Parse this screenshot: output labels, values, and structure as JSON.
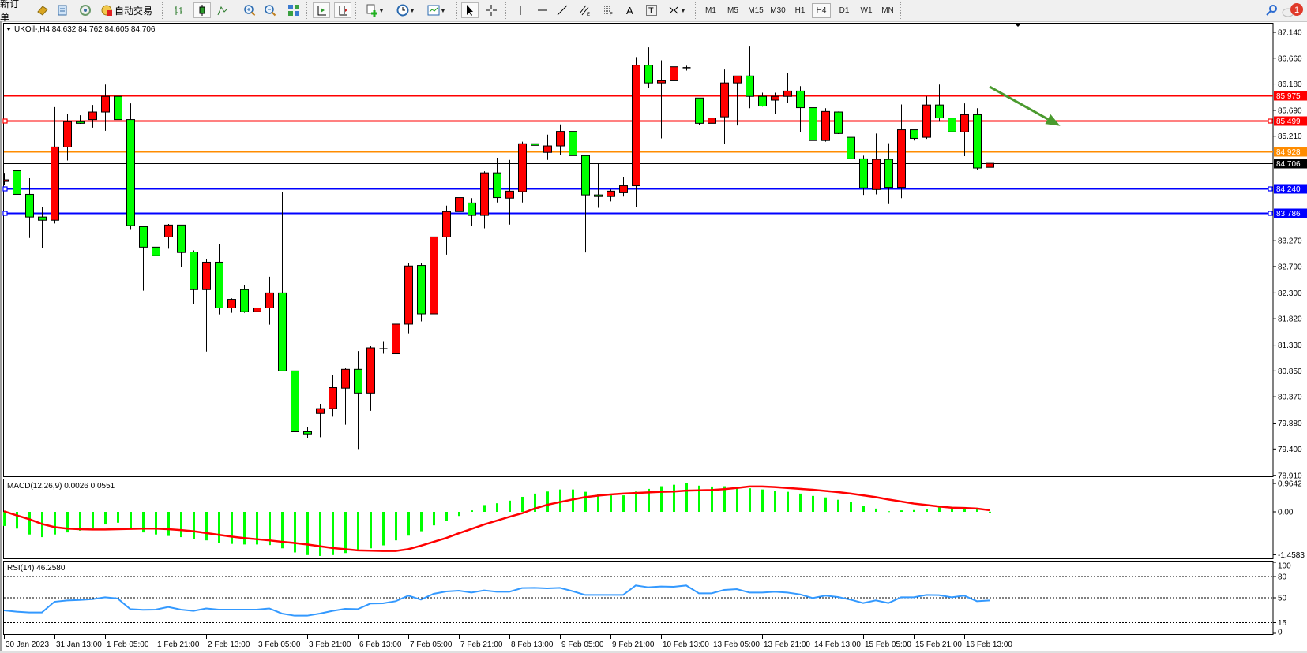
{
  "toolbar": {
    "new_order": "新订单",
    "auto_trading": "自动交易",
    "periods": [
      "M1",
      "M5",
      "M15",
      "M30",
      "H1",
      "H4",
      "D1",
      "W1",
      "MN"
    ],
    "active_period": "H4",
    "notification_count": "1"
  },
  "chart": {
    "symbol_info": "UKOil-,H4  84.632 84.762 84.605 84.706",
    "up_color": "#ff0000",
    "down_color": "#00ff00",
    "price_ticks": [
      "87.140",
      "86.660",
      "86.180",
      "85.690",
      "85.210",
      "83.270",
      "82.790",
      "82.300",
      "81.820",
      "81.330",
      "80.850",
      "80.370",
      "79.880",
      "79.400",
      "78.910"
    ],
    "horizontal_lines": [
      {
        "price": 85.975,
        "label": "85.975",
        "color": "#ff0000",
        "marker": false
      },
      {
        "price": 85.499,
        "label": "85.499",
        "color": "#ff0000",
        "marker": true
      },
      {
        "price": 84.928,
        "label": "84.928",
        "color": "#ff8c00",
        "marker": false
      },
      {
        "price": 84.706,
        "label": "84.706",
        "color": "#000000",
        "marker": false
      },
      {
        "price": 84.24,
        "label": "84.240",
        "color": "#0000ff",
        "marker": true
      },
      {
        "price": 83.786,
        "label": "83.786",
        "color": "#0000ff",
        "marker": true
      }
    ],
    "arrow": {
      "color": "#4a9a2e",
      "from": {
        "bar": 78,
        "price": 86.13
      },
      "to": {
        "bar": 83.6,
        "price": 85.4
      }
    },
    "time_labels": [
      "30 Jan 2023",
      "31 Jan 13:00",
      "1 Feb 05:00",
      "1 Feb 21:00",
      "2 Feb 13:00",
      "3 Feb 05:00",
      "3 Feb 21:00",
      "6 Feb 13:00",
      "7 Feb 05:00",
      "7 Feb 21:00",
      "8 Feb 13:00",
      "9 Feb 05:00",
      "9 Feb 21:00",
      "10 Feb 13:00",
      "13 Feb 05:00",
      "13 Feb 21:00",
      "14 Feb 13:00",
      "15 Feb 05:00",
      "15 Feb 21:00",
      "16 Feb 13:00"
    ]
  },
  "chart_data": {
    "type": "candlestick",
    "symbol": "UKOil-",
    "timeframe": "H4",
    "ylim": [
      78.91,
      87.14
    ],
    "ohlc": [
      [
        84.37,
        84.53,
        84.3,
        84.4
      ],
      [
        84.57,
        84.77,
        84.12,
        84.13
      ],
      [
        84.13,
        84.43,
        83.32,
        83.71
      ],
      [
        83.71,
        83.89,
        83.13,
        83.65
      ],
      [
        83.65,
        85.75,
        83.59,
        85.01
      ],
      [
        85.01,
        85.63,
        84.76,
        85.48
      ],
      [
        85.48,
        85.6,
        85.44,
        85.45
      ],
      [
        85.52,
        85.79,
        85.37,
        85.66
      ],
      [
        85.66,
        86.17,
        85.31,
        85.95
      ],
      [
        85.95,
        86.1,
        85.12,
        85.52
      ],
      [
        85.52,
        85.82,
        83.47,
        83.55
      ],
      [
        83.53,
        83.53,
        82.34,
        83.15
      ],
      [
        83.15,
        83.32,
        82.85,
        82.99
      ],
      [
        83.34,
        83.58,
        83.12,
        83.56
      ],
      [
        83.56,
        83.56,
        82.78,
        83.05
      ],
      [
        83.06,
        83.09,
        82.09,
        82.36
      ],
      [
        82.36,
        82.92,
        81.21,
        82.87
      ],
      [
        82.87,
        83.21,
        81.9,
        82.02
      ],
      [
        82.02,
        82.2,
        81.93,
        82.18
      ],
      [
        82.36,
        82.45,
        81.93,
        81.95
      ],
      [
        81.95,
        82.16,
        81.42,
        82.02
      ],
      [
        82.02,
        82.6,
        81.71,
        82.3
      ],
      [
        82.3,
        84.17,
        80.84,
        80.85
      ],
      [
        80.85,
        80.85,
        79.69,
        79.72
      ],
      [
        79.72,
        79.8,
        79.61,
        79.68
      ],
      [
        80.06,
        80.24,
        79.62,
        80.15
      ],
      [
        80.15,
        80.77,
        80.0,
        80.54
      ],
      [
        80.53,
        80.91,
        79.85,
        80.88
      ],
      [
        80.88,
        81.22,
        79.4,
        80.44
      ],
      [
        80.44,
        81.31,
        80.11,
        81.28
      ],
      [
        81.27,
        81.39,
        81.17,
        81.27
      ],
      [
        81.17,
        81.81,
        81.15,
        81.72
      ],
      [
        81.72,
        82.85,
        81.55,
        82.8
      ],
      [
        82.81,
        82.86,
        81.77,
        81.91
      ],
      [
        81.91,
        83.57,
        81.46,
        83.34
      ],
      [
        83.34,
        83.92,
        83.01,
        83.81
      ],
      [
        83.81,
        84.07,
        83.81,
        84.07
      ],
      [
        83.97,
        84.06,
        83.54,
        83.74
      ],
      [
        83.74,
        84.56,
        83.5,
        84.53
      ],
      [
        84.53,
        84.81,
        83.98,
        84.07
      ],
      [
        84.06,
        84.77,
        83.57,
        84.19
      ],
      [
        84.18,
        85.11,
        83.98,
        85.07
      ],
      [
        85.07,
        85.12,
        84.99,
        85.06
      ],
      [
        84.91,
        85.24,
        84.77,
        85.03
      ],
      [
        85.03,
        85.43,
        84.86,
        85.3
      ],
      [
        85.3,
        85.46,
        84.7,
        84.85
      ],
      [
        84.85,
        84.85,
        83.05,
        84.12
      ],
      [
        84.12,
        84.7,
        83.88,
        84.09
      ],
      [
        84.09,
        84.22,
        84.0,
        84.19
      ],
      [
        84.16,
        84.45,
        84.09,
        84.29
      ],
      [
        84.29,
        86.68,
        83.89,
        86.53
      ],
      [
        86.53,
        86.86,
        86.1,
        86.2
      ],
      [
        86.2,
        86.62,
        85.17,
        86.24
      ],
      [
        86.24,
        86.52,
        85.71,
        86.5
      ],
      [
        86.49,
        86.52,
        86.43,
        86.49
      ],
      [
        85.92,
        85.92,
        85.42,
        85.45
      ],
      [
        85.45,
        85.73,
        85.41,
        85.55
      ],
      [
        85.57,
        86.45,
        85.07,
        86.2
      ],
      [
        86.2,
        86.33,
        85.41,
        86.33
      ],
      [
        86.33,
        86.89,
        85.73,
        85.95
      ],
      [
        85.95,
        86.02,
        85.76,
        85.77
      ],
      [
        85.88,
        86.02,
        85.63,
        85.95
      ],
      [
        85.95,
        86.39,
        85.83,
        86.05
      ],
      [
        86.05,
        86.14,
        85.28,
        85.74
      ],
      [
        85.74,
        86.13,
        84.1,
        85.13
      ],
      [
        85.13,
        85.73,
        85.11,
        85.67
      ],
      [
        85.66,
        85.67,
        85.25,
        85.26
      ],
      [
        85.19,
        85.42,
        84.76,
        84.79
      ],
      [
        84.79,
        84.85,
        84.12,
        84.25
      ],
      [
        84.22,
        85.26,
        84.13,
        84.78
      ],
      [
        84.78,
        85.08,
        83.95,
        84.26
      ],
      [
        84.26,
        85.8,
        84.06,
        85.33
      ],
      [
        85.33,
        85.33,
        85.13,
        85.17
      ],
      [
        85.19,
        85.95,
        85.16,
        85.79
      ],
      [
        85.79,
        86.17,
        85.48,
        85.55
      ],
      [
        85.55,
        85.66,
        84.7,
        85.29
      ],
      [
        85.29,
        85.82,
        84.84,
        85.61
      ],
      [
        85.61,
        85.73,
        84.59,
        84.62
      ],
      [
        84.632,
        84.762,
        84.605,
        84.706
      ]
    ],
    "macd": {
      "label": "MACD(12,26,9) 0.0026 0.0551",
      "axis_labels": [
        "0.9642",
        "0.00",
        "-1.4583"
      ],
      "ylim": [
        -1.4583,
        0.9642
      ],
      "histogram_color": "#00ff00",
      "signal_color": "#ff0000",
      "histogram": [
        -0.48,
        -0.57,
        -0.77,
        -0.86,
        -0.77,
        -0.7,
        -0.64,
        -0.57,
        -0.43,
        -0.37,
        -0.57,
        -0.7,
        -0.77,
        -0.82,
        -0.86,
        -0.93,
        -0.97,
        -1.06,
        -1.09,
        -1.11,
        -1.11,
        -1.13,
        -1.24,
        -1.38,
        -1.47,
        -1.5,
        -1.47,
        -1.4,
        -1.33,
        -1.24,
        -1.14,
        -0.97,
        -0.81,
        -0.66,
        -0.46,
        -0.3,
        -0.14,
        0.05,
        0.23,
        0.29,
        0.38,
        0.51,
        0.62,
        0.69,
        0.76,
        0.76,
        0.68,
        0.6,
        0.56,
        0.56,
        0.69,
        0.78,
        0.87,
        0.92,
        0.98,
        0.89,
        0.86,
        0.87,
        0.83,
        0.8,
        0.76,
        0.71,
        0.68,
        0.62,
        0.54,
        0.49,
        0.41,
        0.33,
        0.2,
        0.11,
        0.02,
        0.05,
        0.06,
        0.08,
        0.15,
        0.14,
        0.11,
        0.08,
        0.0026
      ],
      "signal": [
        0.02,
        -0.12,
        -0.25,
        -0.41,
        -0.52,
        -0.57,
        -0.59,
        -0.6,
        -0.6,
        -0.59,
        -0.58,
        -0.57,
        -0.57,
        -0.59,
        -0.62,
        -0.66,
        -0.72,
        -0.78,
        -0.84,
        -0.89,
        -0.93,
        -0.97,
        -1.02,
        -1.06,
        -1.11,
        -1.17,
        -1.23,
        -1.27,
        -1.31,
        -1.32,
        -1.33,
        -1.33,
        -1.27,
        -1.15,
        -1.02,
        -0.89,
        -0.73,
        -0.58,
        -0.43,
        -0.3,
        -0.17,
        -0.05,
        0.11,
        0.24,
        0.33,
        0.42,
        0.5,
        0.55,
        0.59,
        0.62,
        0.64,
        0.66,
        0.68,
        0.69,
        0.72,
        0.73,
        0.74,
        0.77,
        0.81,
        0.86,
        0.86,
        0.84,
        0.81,
        0.78,
        0.75,
        0.71,
        0.67,
        0.62,
        0.56,
        0.5,
        0.42,
        0.35,
        0.28,
        0.23,
        0.18,
        0.14,
        0.13,
        0.11,
        0.0551
      ]
    },
    "rsi": {
      "label": "RSI(14) 46.2580",
      "axis_labels": [
        "100",
        "80",
        "50",
        "15",
        "0"
      ],
      "levels": [
        80,
        50,
        15
      ],
      "ylim": [
        0,
        100
      ],
      "color": "#3399ff",
      "values": [
        32.2,
        30.4,
        29.3,
        29.3,
        44.4,
        46.3,
        47.0,
        48.0,
        50.7,
        49.0,
        34.0,
        33.0,
        33.3,
        37.0,
        33.3,
        31.5,
        35.0,
        33.3,
        33.3,
        33.3,
        33.3,
        35.0,
        27.8,
        24.8,
        24.8,
        27.8,
        31.5,
        34.4,
        34.0,
        41.9,
        42.2,
        45.2,
        53.0,
        47.4,
        55.6,
        58.9,
        60.0,
        57.4,
        60.4,
        58.5,
        58.5,
        63.7,
        64.0,
        63.3,
        64.0,
        59.3,
        54.0,
        54.0,
        54.0,
        54.0,
        67.4,
        64.8,
        66.0,
        65.6,
        67.4,
        56.3,
        56.3,
        61.1,
        62.2,
        57.4,
        57.4,
        58.5,
        57.4,
        54.8,
        49.6,
        53.0,
        51.1,
        47.4,
        42.6,
        46.3,
        42.6,
        50.7,
        50.7,
        54.0,
        53.7,
        50.7,
        53.0,
        45.2,
        46.258
      ]
    }
  }
}
